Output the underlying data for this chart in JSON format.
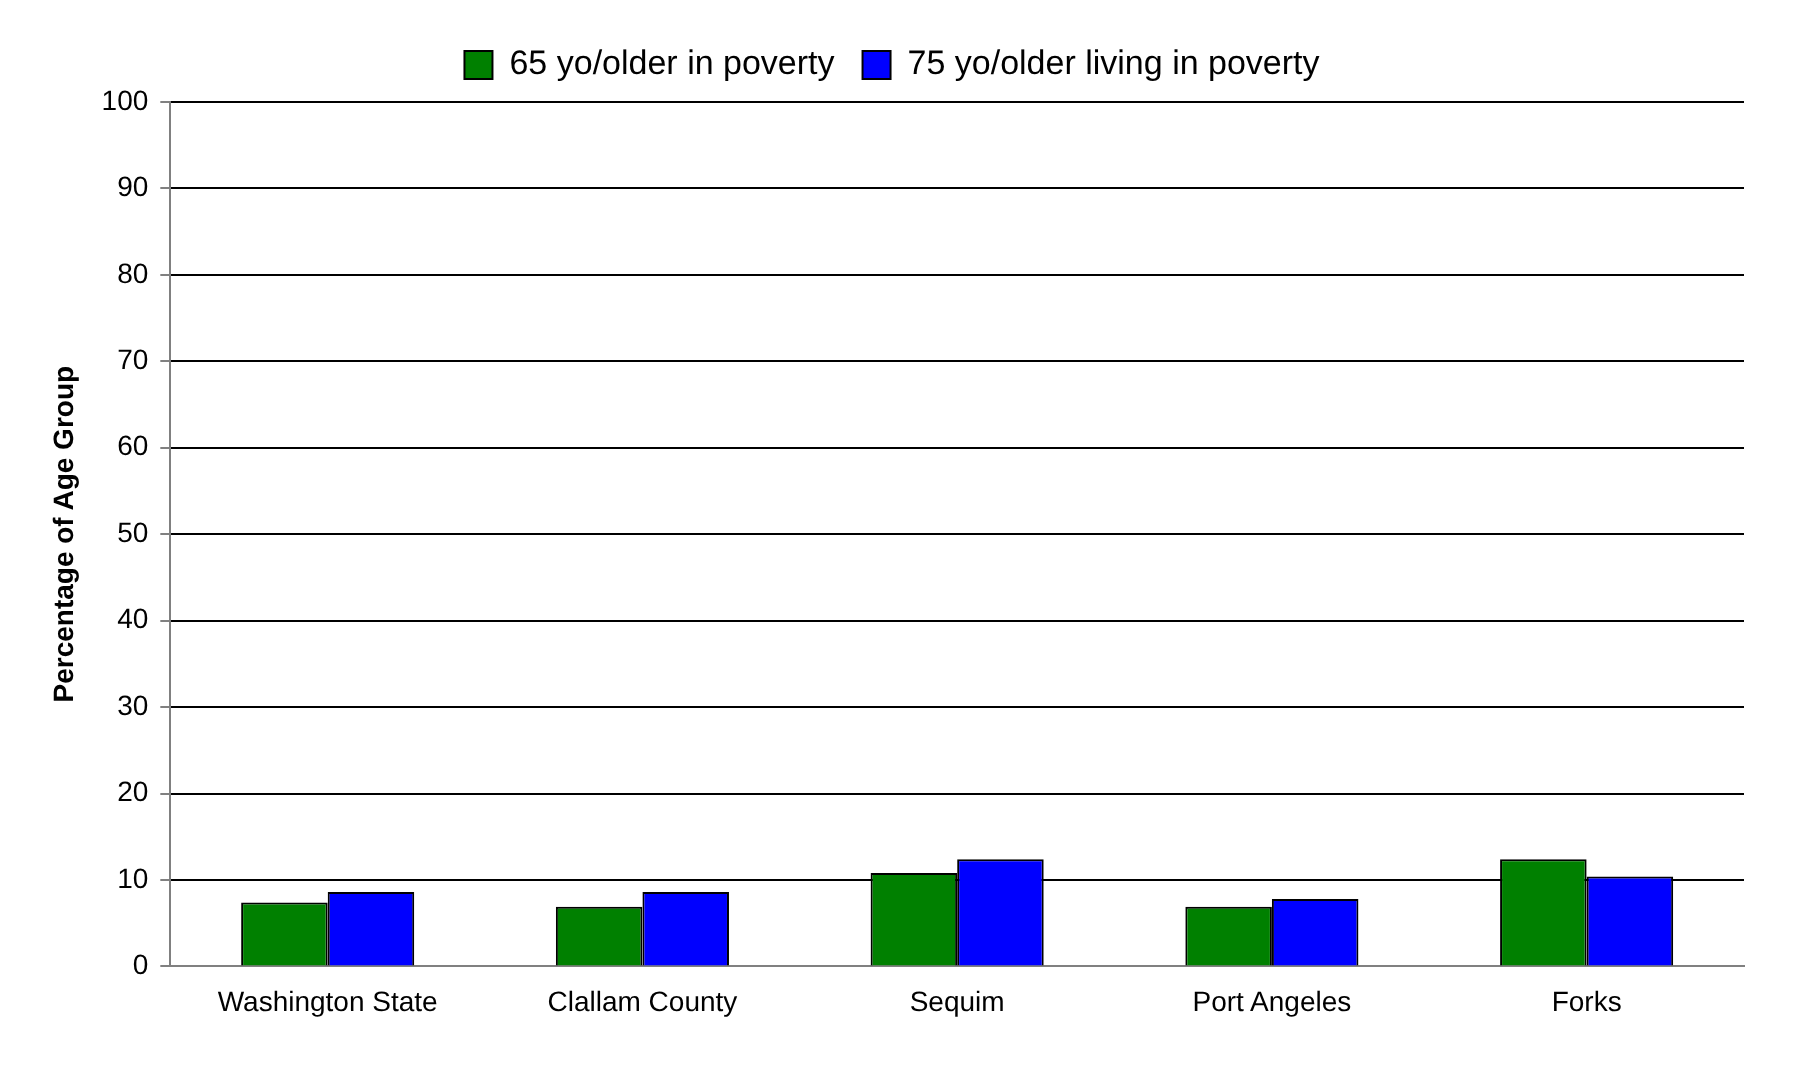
{
  "chart_data": {
    "type": "bar",
    "ylabel": "Percentage of Age Group",
    "categories": [
      "Washington State",
      "Clallam County",
      "Sequim",
      "Port Angeles",
      "Forks"
    ],
    "series": [
      {
        "name": "65 yo/older in poverty",
        "color": "#008000",
        "values": [
          7.4,
          6.9,
          10.8,
          6.9,
          12.4
        ]
      },
      {
        "name": "75 yo/older living in poverty",
        "color": "#0000ff",
        "values": [
          8.6,
          8.6,
          12.4,
          7.8,
          10.4
        ]
      }
    ],
    "ylim": [
      0,
      100
    ],
    "yticks": [
      0,
      10,
      20,
      30,
      40,
      50,
      60,
      70,
      80,
      90,
      100
    ],
    "grid": "y",
    "legend": "top"
  }
}
